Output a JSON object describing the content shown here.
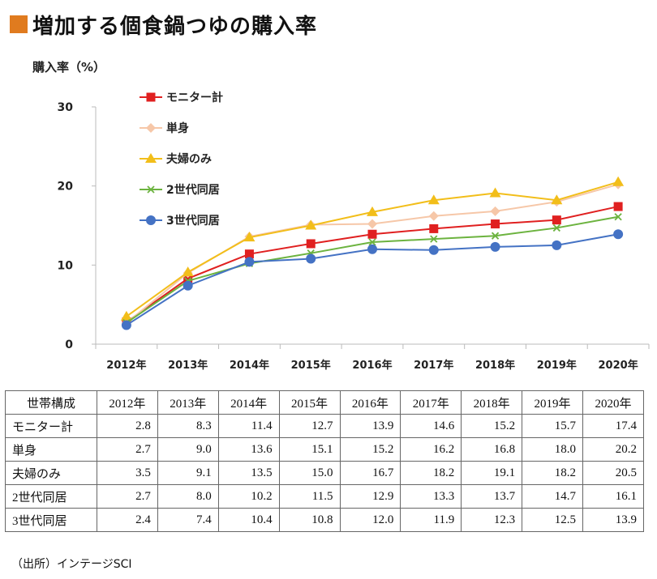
{
  "title": "増加する個食鍋つゆの購入率",
  "source": "（出所）インテージSCI",
  "chart_data": {
    "type": "line",
    "ylabel": "購入率（%）",
    "xlabel": "",
    "ylim": [
      0,
      30
    ],
    "yticks": [
      0,
      10,
      20,
      30
    ],
    "categories": [
      "2012年",
      "2013年",
      "2014年",
      "2015年",
      "2016年",
      "2017年",
      "2018年",
      "2019年",
      "2020年"
    ],
    "legend_position": "top-left",
    "grid": false,
    "series": [
      {
        "name": "モニター計",
        "color": "#e02020",
        "marker": "square",
        "values": [
          2.8,
          8.3,
          11.4,
          12.7,
          13.9,
          14.6,
          15.2,
          15.7,
          17.4
        ]
      },
      {
        "name": "単身",
        "color": "#f6c7a8",
        "marker": "diamond",
        "values": [
          2.7,
          9.0,
          13.6,
          15.1,
          15.2,
          16.2,
          16.8,
          18.0,
          20.2
        ]
      },
      {
        "name": "夫婦のみ",
        "color": "#f2be1a",
        "marker": "triangle",
        "values": [
          3.5,
          9.1,
          13.5,
          15.0,
          16.7,
          18.2,
          19.1,
          18.2,
          20.5
        ]
      },
      {
        "name": "2世代同居",
        "color": "#6cb33f",
        "marker": "x",
        "values": [
          2.7,
          8.0,
          10.2,
          11.5,
          12.9,
          13.3,
          13.7,
          14.7,
          16.1
        ]
      },
      {
        "name": "3世代同居",
        "color": "#4472c4",
        "marker": "circle",
        "values": [
          2.4,
          7.4,
          10.4,
          10.8,
          12.0,
          11.9,
          12.3,
          12.5,
          13.9
        ]
      }
    ]
  },
  "table": {
    "corner": "世帯構成",
    "headers": [
      "2012年",
      "2013年",
      "2014年",
      "2015年",
      "2016年",
      "2017年",
      "2018年",
      "2019年",
      "2020年"
    ],
    "rows": [
      {
        "label": "モニター計",
        "cells": [
          "2.8",
          "8.3",
          "11.4",
          "12.7",
          "13.9",
          "14.6",
          "15.2",
          "15.7",
          "17.4"
        ]
      },
      {
        "label": "単身",
        "cells": [
          "2.7",
          "9.0",
          "13.6",
          "15.1",
          "15.2",
          "16.2",
          "16.8",
          "18.0",
          "20.2"
        ]
      },
      {
        "label": "夫婦のみ",
        "cells": [
          "3.5",
          "9.1",
          "13.5",
          "15.0",
          "16.7",
          "18.2",
          "19.1",
          "18.2",
          "20.5"
        ]
      },
      {
        "label": "2世代同居",
        "cells": [
          "2.7",
          "8.0",
          "10.2",
          "11.5",
          "12.9",
          "13.3",
          "13.7",
          "14.7",
          "16.1"
        ]
      },
      {
        "label": "3世代同居",
        "cells": [
          "2.4",
          "7.4",
          "10.4",
          "10.8",
          "12.0",
          "11.9",
          "12.3",
          "12.5",
          "13.9"
        ]
      }
    ]
  }
}
